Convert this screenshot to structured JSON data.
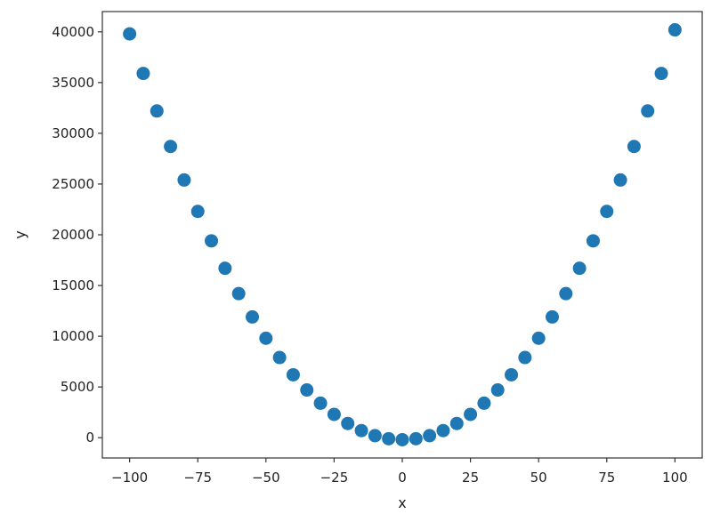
{
  "chart_data": {
    "type": "scatter",
    "title": "",
    "xlabel": "x",
    "ylabel": "y",
    "xlim": [
      -110,
      110
    ],
    "ylim": [
      -2000,
      42000
    ],
    "xticks": [
      -100,
      -75,
      -50,
      -25,
      0,
      25,
      50,
      75,
      100
    ],
    "yticks": [
      0,
      5000,
      10000,
      15000,
      20000,
      25000,
      30000,
      35000,
      40000
    ],
    "grid": false,
    "legend": "none",
    "marker_color": "#1f77b4",
    "series": [
      {
        "x": [
          -100,
          -95,
          -90,
          -85,
          -80,
          -75,
          -70,
          -65,
          -60,
          -55,
          -50,
          -45,
          -40,
          -35,
          -30,
          -25,
          -20,
          -15,
          -10,
          -5,
          0,
          5,
          10,
          15,
          20,
          25,
          30,
          35,
          40,
          45,
          50,
          55,
          60,
          65,
          70,
          75,
          80,
          85,
          90,
          95,
          100
        ],
        "y": [
          39800,
          35900,
          32200,
          28700,
          25400,
          22300,
          19400,
          16700,
          14200,
          11900,
          9800,
          7900,
          6200,
          4700,
          3400,
          2300,
          1400,
          700,
          200,
          -100,
          -200,
          -100,
          200,
          700,
          1400,
          2300,
          3400,
          4700,
          6200,
          7900,
          9800,
          11900,
          14200,
          16700,
          19400,
          22300,
          25400,
          28700,
          32200,
          35900,
          40200
        ]
      }
    ]
  }
}
